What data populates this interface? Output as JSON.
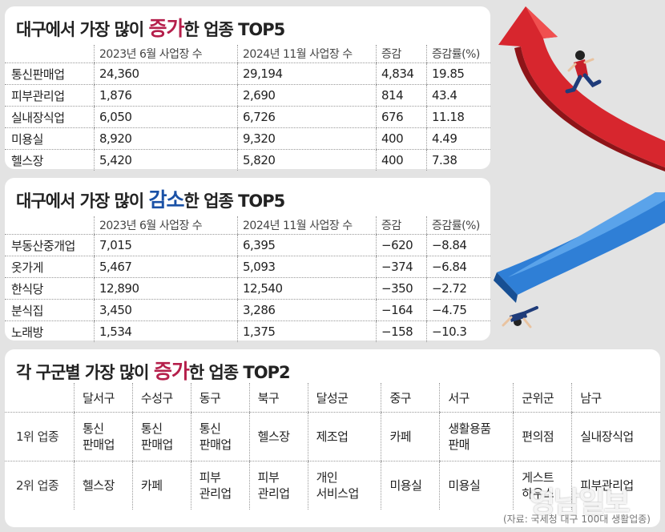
{
  "increase_top5": {
    "title_pre": "대구에서 가장 많이 ",
    "title_hl": "증가",
    "title_post": "한 업종 TOP5",
    "headers": [
      "",
      "2023년 6월 사업장 수",
      "2024년 11월 사업장 수",
      "증감",
      "증감률(%)"
    ],
    "rows": [
      {
        "name": "통신판매업",
        "v2023": "24,360",
        "v2024": "29,194",
        "diff": "4,834",
        "rate": "19.85"
      },
      {
        "name": "피부관리업",
        "v2023": "1,876",
        "v2024": "2,690",
        "diff": "814",
        "rate": "43.4"
      },
      {
        "name": "실내장식업",
        "v2023": "6,050",
        "v2024": "6,726",
        "diff": "676",
        "rate": "11.18"
      },
      {
        "name": "미용실",
        "v2023": "8,920",
        "v2024": "9,320",
        "diff": "400",
        "rate": "4.49"
      },
      {
        "name": "헬스장",
        "v2023": "5,420",
        "v2024": "5,820",
        "diff": "400",
        "rate": "7.38"
      }
    ]
  },
  "decrease_top5": {
    "title_pre": "대구에서 가장 많이 ",
    "title_hl": "감소",
    "title_post": "한 업종 TOP5",
    "headers": [
      "",
      "2023년 6월 사업장 수",
      "2024년 11월 사업장 수",
      "증감",
      "증감률(%)"
    ],
    "rows": [
      {
        "name": "부동산중개업",
        "v2023": "7,015",
        "v2024": "6,395",
        "diff": "−620",
        "rate": "−8.84"
      },
      {
        "name": "옷가게",
        "v2023": "5,467",
        "v2024": "5,093",
        "diff": "−374",
        "rate": "−6.84"
      },
      {
        "name": "한식당",
        "v2023": "12,890",
        "v2024": "12,540",
        "diff": "−350",
        "rate": "−2.72"
      },
      {
        "name": "분식집",
        "v2023": "3,450",
        "v2024": "3,286",
        "diff": "−164",
        "rate": "−4.75"
      },
      {
        "name": "노래방",
        "v2023": "1,534",
        "v2024": "1,375",
        "diff": "−158",
        "rate": "−10.3"
      }
    ]
  },
  "district_top2": {
    "title_pre": "각 구군별 가장 많이 ",
    "title_hl": "증가",
    "title_post": "한 업종 TOP2",
    "districts": [
      "달서구",
      "수성구",
      "동구",
      "북구",
      "달성군",
      "중구",
      "서구",
      "군위군",
      "남구"
    ],
    "rank1_label": "1위 업종",
    "rank2_label": "2위 업종",
    "rank1": [
      "통신\n판매업",
      "통신\n판매업",
      "통신\n판매업",
      "헬스장",
      "제조업",
      "카페",
      "생활용품\n판매",
      "편의점",
      "실내장식업"
    ],
    "rank2": [
      "헬스장",
      "카페",
      "피부\n관리업",
      "피부\n관리업",
      "개인\n서비스업",
      "미용실",
      "미용실",
      "게스트\n하우스",
      "피부관리업"
    ]
  },
  "source": "(자료: 국세청 대구 100대 생활업종)",
  "watermark": "영남일보",
  "colors": {
    "increase": "#b51f4b",
    "decrease": "#1a51a6",
    "arrow_up": "#d7262e",
    "arrow_down": "#2f7fd6"
  },
  "icons": [
    "red-rising-arrow-icon",
    "running-man-icon",
    "blue-falling-arrow-icon",
    "falling-man-icon"
  ]
}
